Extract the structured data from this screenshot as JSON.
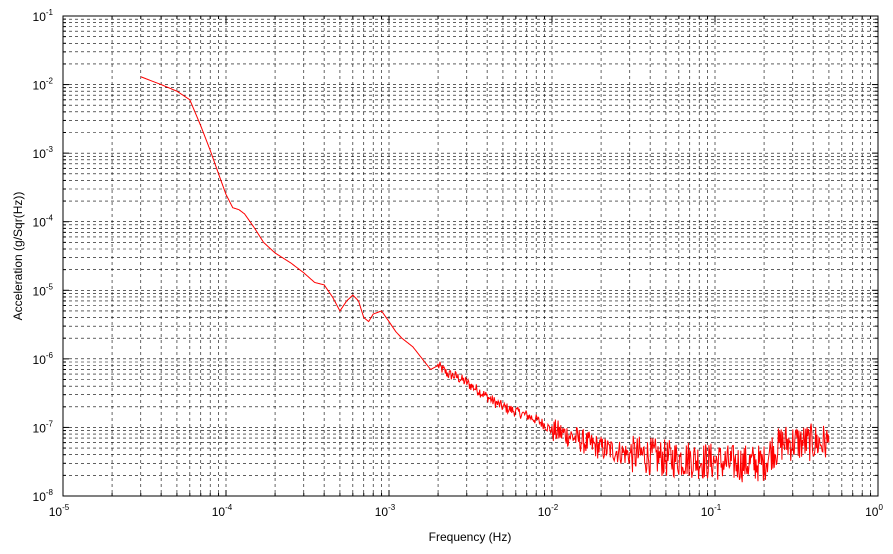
{
  "chart_data": {
    "type": "line",
    "title": "",
    "xlabel": "Frequency (Hz)",
    "ylabel": "Acceleration (g/Sqr(Hz))",
    "xscale": "log",
    "yscale": "log",
    "xlim": [
      1e-05,
      1
    ],
    "ylim": [
      1e-08,
      0.1
    ],
    "grid": true,
    "grid_style": "dashed",
    "legend": "none",
    "x_ticks": [
      {
        "base": "10",
        "exp": "-5",
        "value": 1e-05
      },
      {
        "base": "10",
        "exp": "-4",
        "value": 0.0001
      },
      {
        "base": "10",
        "exp": "-3",
        "value": 0.001
      },
      {
        "base": "10",
        "exp": "-2",
        "value": 0.01
      },
      {
        "base": "10",
        "exp": "-1",
        "value": 0.1
      },
      {
        "base": "10",
        "exp": "0",
        "value": 1
      }
    ],
    "y_ticks": [
      {
        "base": "10",
        "exp": "-8",
        "value": 1e-08
      },
      {
        "base": "10",
        "exp": "-7",
        "value": 1e-07
      },
      {
        "base": "10",
        "exp": "-6",
        "value": 1e-06
      },
      {
        "base": "10",
        "exp": "-5",
        "value": 1e-05
      },
      {
        "base": "10",
        "exp": "-4",
        "value": 0.0001
      },
      {
        "base": "10",
        "exp": "-3",
        "value": 0.001
      },
      {
        "base": "10",
        "exp": "-2",
        "value": 0.01
      },
      {
        "base": "10",
        "exp": "-1",
        "value": 0.1
      }
    ],
    "series": [
      {
        "color": "#ff0000",
        "x": [
          3e-05,
          4e-05,
          5e-05,
          6e-05,
          7e-05,
          8e-05,
          9e-05,
          0.0001,
          0.00011,
          0.00012,
          0.00013,
          0.00015,
          0.00017,
          0.0002,
          0.00025,
          0.0003,
          0.00035,
          0.0004,
          0.00045,
          0.0005,
          0.00055,
          0.0006,
          0.00065,
          0.0007,
          0.00075,
          0.0008,
          0.0009,
          0.001,
          0.0011,
          0.0012,
          0.0014,
          0.0016,
          0.0018,
          0.002,
          0.0023,
          0.0026,
          0.003,
          0.0035,
          0.004,
          0.0045,
          0.005,
          0.006,
          0.007,
          0.008,
          0.009,
          0.01,
          0.012,
          0.014,
          0.016,
          0.018,
          0.02,
          0.025,
          0.03,
          0.035,
          0.04,
          0.05,
          0.06,
          0.07,
          0.08,
          0.09,
          0.1,
          0.12,
          0.14,
          0.16,
          0.18,
          0.2,
          0.22,
          0.24,
          0.26,
          0.3,
          0.35,
          0.4,
          0.45,
          0.5
        ],
        "y": [
          0.013,
          0.01,
          0.008,
          0.006,
          0.0025,
          0.0011,
          0.0005,
          0.00025,
          0.00016,
          0.00015,
          0.00013,
          8e-05,
          5e-05,
          3.5e-05,
          2.5e-05,
          1.8e-05,
          1.3e-05,
          1.2e-05,
          8e-06,
          5e-06,
          7e-06,
          8.5e-06,
          7e-06,
          4e-06,
          3.5e-06,
          4.5e-06,
          5e-06,
          3.5e-06,
          2.5e-06,
          2e-06,
          1.5e-06,
          1e-06,
          7e-07,
          8e-07,
          6e-07,
          5.5e-07,
          4.5e-07,
          3.5e-07,
          2.8e-07,
          2.3e-07,
          2e-07,
          1.7e-07,
          1.5e-07,
          1.3e-07,
          1.1e-07,
          9e-08,
          8e-08,
          7e-08,
          6e-08,
          5.5e-08,
          5e-08,
          4.5e-08,
          4e-08,
          4e-08,
          3.8e-08,
          3.5e-08,
          3.5e-08,
          3.5e-08,
          3.3e-08,
          3.2e-08,
          3.2e-08,
          3e-08,
          3e-08,
          3e-08,
          3e-08,
          3e-08,
          4.5e-08,
          5e-08,
          6e-08,
          6e-08,
          6e-08,
          6e-08,
          6e-08,
          6e-08
        ]
      }
    ]
  }
}
